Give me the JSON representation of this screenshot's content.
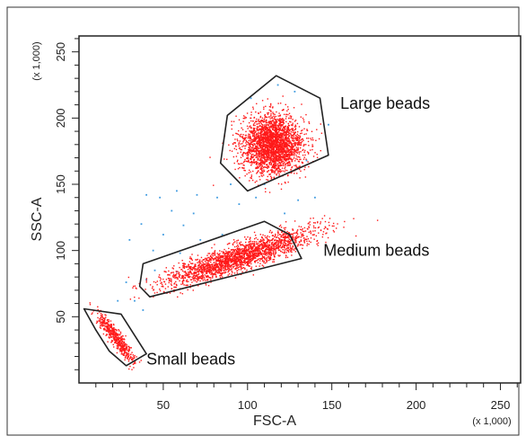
{
  "chart_data": {
    "type": "scatter",
    "xlabel": "FSC-A",
    "ylabel": "SSC-A",
    "x_multiplier": "(x 1,000)",
    "y_multiplier": "(x 1,000)",
    "xlim": [
      0,
      262
    ],
    "ylim": [
      0,
      262
    ],
    "x_ticks": [
      50,
      100,
      150,
      200,
      250
    ],
    "y_ticks": [
      50,
      100,
      150,
      200,
      250
    ],
    "colors": {
      "beads": "#ff1a1a",
      "debris": "#3f9be0",
      "gate": "#222222"
    },
    "populations": [
      {
        "name": "Large beads",
        "color": "#ff1a1a",
        "center": [
          115,
          180
        ],
        "spread": [
          9,
          11
        ],
        "count": 2600,
        "gate": [
          [
            100,
            145
          ],
          [
            148,
            172
          ],
          [
            143,
            215
          ],
          [
            117,
            232
          ],
          [
            88,
            202
          ],
          [
            84,
            166
          ]
        ],
        "label_anchor": [
          155,
          207
        ]
      },
      {
        "name": "Medium beads",
        "color": "#ff1a1a",
        "center": [
          95,
          95
        ],
        "spread": [
          22,
          5
        ],
        "count": 2200,
        "gate": [
          [
            42,
            65
          ],
          [
            132,
            94
          ],
          [
            125,
            112
          ],
          [
            110,
            122
          ],
          [
            38,
            90
          ],
          [
            36,
            73
          ]
        ],
        "label_anchor": [
          145,
          96
        ]
      },
      {
        "name": "Small beads",
        "color": "#ff1a1a",
        "center": [
          22,
          34
        ],
        "spread": [
          6,
          9
        ],
        "count": 500,
        "gate": [
          [
            28,
            13
          ],
          [
            40,
            22
          ],
          [
            25,
            52
          ],
          [
            3,
            56
          ],
          [
            10,
            40
          ],
          [
            18,
            24
          ]
        ],
        "label_anchor": [
          40,
          14
        ]
      }
    ],
    "debris": [
      [
        40,
        142
      ],
      [
        48,
        140
      ],
      [
        58,
        145
      ],
      [
        70,
        142
      ],
      [
        82,
        140
      ],
      [
        37,
        120
      ],
      [
        55,
        130
      ],
      [
        68,
        128
      ],
      [
        50,
        112
      ],
      [
        62,
        119
      ],
      [
        44,
        100
      ],
      [
        30,
        108
      ],
      [
        45,
        85
      ],
      [
        33,
        62
      ],
      [
        40,
        78
      ],
      [
        72,
        108
      ],
      [
        85,
        112
      ],
      [
        60,
        98
      ],
      [
        95,
        135
      ],
      [
        105,
        140
      ],
      [
        130,
        138
      ],
      [
        140,
        140
      ],
      [
        122,
        128
      ],
      [
        110,
        150
      ],
      [
        102,
        215
      ],
      [
        118,
        225
      ],
      [
        128,
        220
      ],
      [
        90,
        150
      ],
      [
        135,
        168
      ],
      [
        148,
        195
      ],
      [
        23,
        62
      ],
      [
        38,
        55
      ],
      [
        52,
        68
      ],
      [
        28,
        76
      ],
      [
        58,
        84
      ]
    ]
  }
}
